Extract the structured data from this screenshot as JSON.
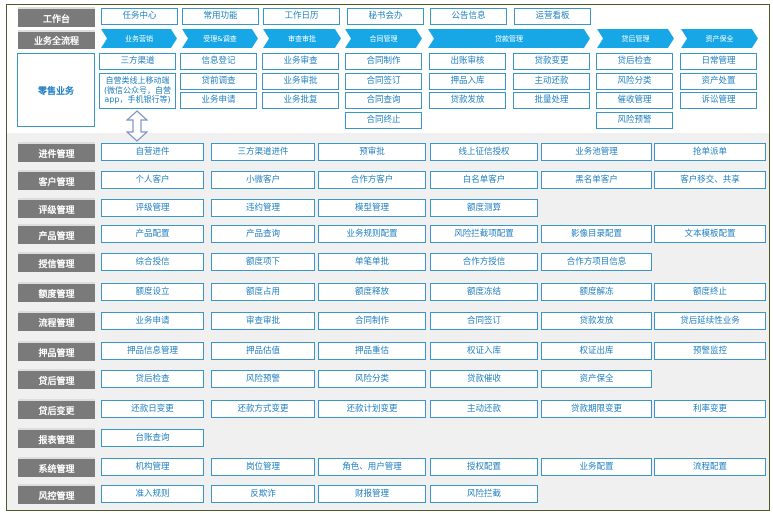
{
  "workbench": {
    "label": "工作台",
    "items": [
      "任务中心",
      "常用功能",
      "工作日历",
      "秘书会办",
      "公告信息",
      "运营看板"
    ]
  },
  "process": {
    "label": "业务全流程",
    "stages": [
      "业务营销",
      "受理&调查",
      "审查审批",
      "合同管理",
      "贷款管理",
      "贷后管理",
      "资产保全"
    ]
  },
  "retail": {
    "label": "零售业务",
    "columns": [
      [
        "三方渠道",
        "自营类线上移动端(微信公众号，自营app，手机银行等)"
      ],
      [
        "信息登记",
        "贷前调查",
        "业务申请"
      ],
      [
        "业务审查",
        "业务审批",
        "业务批复"
      ],
      [
        "合同制作",
        "合同签订",
        "合同查询",
        "合同终止"
      ],
      [
        "出账审核",
        "押品入库",
        "贷款发放"
      ],
      [
        "贷款变更",
        "主动还款",
        "批量处理"
      ],
      [
        "贷后检查",
        "风险分类",
        "催收管理",
        "风险预警"
      ],
      [
        "日常管理",
        "资产处置",
        "诉讼管理"
      ]
    ]
  },
  "modules": [
    {
      "label": "进件管理",
      "items": [
        "自营进件",
        "三方渠道进件",
        "预审批",
        "线上征信授权",
        "业务池管理",
        "抢单派单"
      ]
    },
    {
      "label": "客户管理",
      "items": [
        "个人客户",
        "小微客户",
        "合作方客户",
        "白名单客户",
        "黑名单客户",
        "客户移交、共享"
      ]
    },
    {
      "label": "评级管理",
      "items": [
        "评级管理",
        "违约管理",
        "模型管理",
        "额度测算"
      ]
    },
    {
      "label": "产品管理",
      "items": [
        "产品配置",
        "产品查询",
        "业务规则配置",
        "风险拦截项配置",
        "影像目录配置",
        "文本模板配置"
      ]
    },
    {
      "label": "授信管理",
      "items": [
        "综合授信",
        "额度项下",
        "单笔单批",
        "合作方授信",
        "合作方项目信息"
      ]
    },
    {
      "label": "额度管理",
      "items": [
        "额度设立",
        "额度占用",
        "额度释放",
        "额度冻结",
        "额度解冻",
        "额度终止"
      ]
    },
    {
      "label": "流程管理",
      "items": [
        "业务申请",
        "审查审批",
        "合同制作",
        "合同签订",
        "贷款发放",
        "贷后延续性业务"
      ]
    },
    {
      "label": "押品管理",
      "items": [
        "押品信息管理",
        "押品估值",
        "押品重估",
        "权证入库",
        "权证出库",
        "预警监控"
      ]
    },
    {
      "label": "贷后管理",
      "items": [
        "贷后检查",
        "风险预警",
        "风险分类",
        "贷款催收",
        "资产保全"
      ]
    },
    {
      "label": "贷后变更",
      "items": [
        "还款日变更",
        "还款方式变更",
        "还款计划变更",
        "主动还款",
        "贷款期限变更",
        "利率变更"
      ]
    },
    {
      "label": "报表管理",
      "items": [
        "台账查询"
      ]
    },
    {
      "label": "系统管理",
      "items": [
        "机构管理",
        "岗位管理",
        "角色、用户管理",
        "授权配置",
        "业务配置",
        "流程配置"
      ]
    },
    {
      "label": "风控管理",
      "items": [
        "准入规则",
        "反欺诈",
        "财报管理",
        "风险拦截"
      ]
    }
  ],
  "colors": {
    "label_bg": "#7a7a7a",
    "chevron": "#18a7e6",
    "box_border": "#3a95c9",
    "text": "#1f7fc0",
    "lower_bg": "#f0f0f0"
  }
}
